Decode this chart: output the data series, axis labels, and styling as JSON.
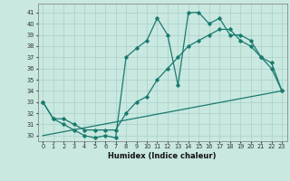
{
  "line1_x": [
    0,
    1,
    2,
    3,
    4,
    5,
    6,
    7,
    8,
    9,
    10,
    11,
    12,
    13,
    14,
    15,
    16,
    17,
    18,
    19,
    20,
    21,
    22,
    23
  ],
  "line1_y": [
    33,
    31.5,
    31,
    30.5,
    30,
    29.8,
    30,
    29.8,
    37.0,
    37.8,
    38.5,
    40.5,
    39.0,
    34.5,
    41.0,
    41.0,
    40.0,
    40.5,
    39.0,
    39.0,
    38.5,
    37.0,
    36.0,
    34.0
  ],
  "line2_x": [
    0,
    1,
    2,
    3,
    4,
    5,
    6,
    7,
    8,
    9,
    10,
    11,
    12,
    13,
    14,
    15,
    16,
    17,
    18,
    19,
    20,
    21,
    22,
    23
  ],
  "line2_y": [
    33.0,
    31.5,
    31.5,
    31.0,
    30.5,
    30.5,
    30.5,
    30.5,
    32.0,
    33.0,
    33.5,
    35.0,
    36.0,
    37.0,
    38.0,
    38.5,
    39.0,
    39.5,
    39.5,
    38.5,
    38.0,
    37.0,
    36.5,
    34.0
  ],
  "line3_x": [
    0,
    23
  ],
  "line3_y": [
    30.0,
    34.0
  ],
  "line_color": "#1a7a6e",
  "bg_color": "#c8e8e0",
  "grid_color": "#aacfca",
  "xlabel": "Humidex (Indice chaleur)",
  "ylim": [
    29.5,
    41.8
  ],
  "xlim": [
    -0.5,
    23.5
  ],
  "yticks": [
    30,
    31,
    32,
    33,
    34,
    35,
    36,
    37,
    38,
    39,
    40,
    41
  ],
  "xticks": [
    0,
    1,
    2,
    3,
    4,
    5,
    6,
    7,
    8,
    9,
    10,
    11,
    12,
    13,
    14,
    15,
    16,
    17,
    18,
    19,
    20,
    21,
    22,
    23
  ]
}
